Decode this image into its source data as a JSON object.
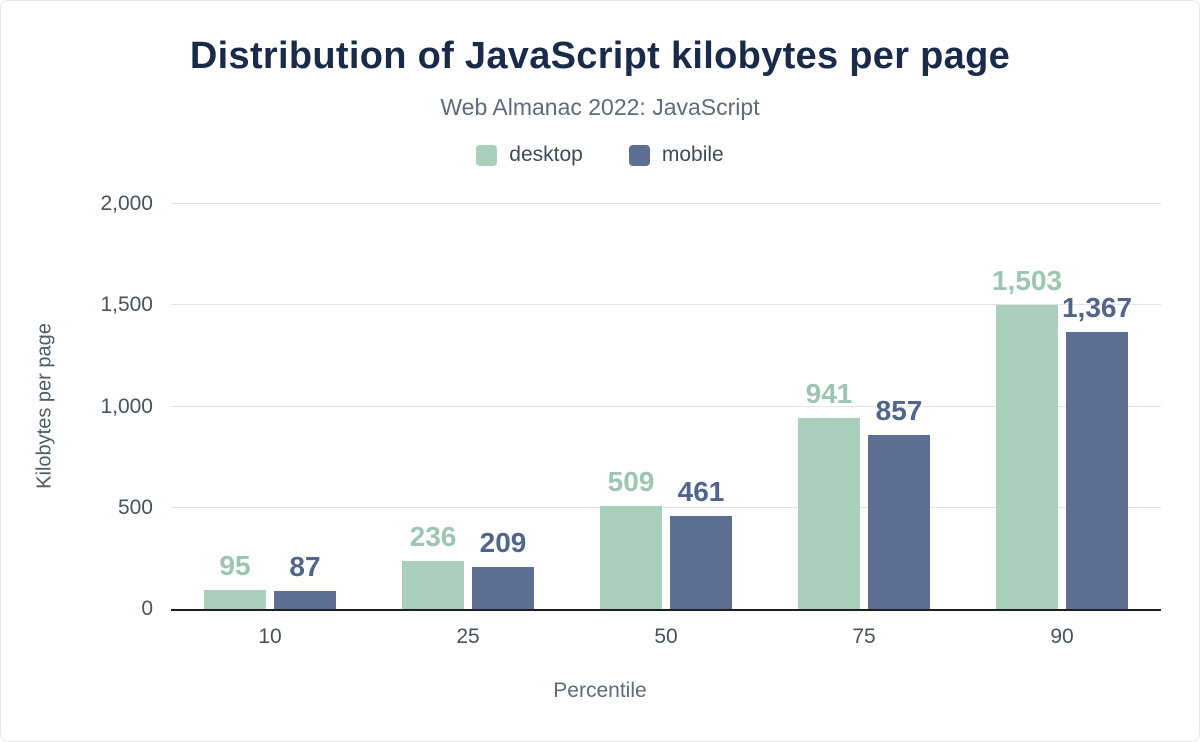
{
  "header": {
    "title": "Distribution of JavaScript kilobytes per page",
    "subtitle": "Web Almanac 2022: JavaScript"
  },
  "legend": [
    {
      "label": "desktop",
      "color": "#a9cfbd"
    },
    {
      "label": "mobile",
      "color": "#5c6e91"
    }
  ],
  "chart_data": {
    "type": "bar",
    "title": "Distribution of JavaScript kilobytes per page",
    "subtitle": "Web Almanac 2022: JavaScript",
    "categories": [
      "10",
      "25",
      "50",
      "75",
      "90"
    ],
    "series": [
      {
        "name": "desktop",
        "color": "#a9cfbd",
        "label_color": "#9cc6b1",
        "values": [
          95,
          236,
          509,
          941,
          1503
        ],
        "labels": [
          "95",
          "236",
          "509",
          "941",
          "1,503"
        ]
      },
      {
        "name": "mobile",
        "color": "#5c6e91",
        "label_color": "#51658c",
        "values": [
          87,
          209,
          461,
          857,
          1367
        ],
        "labels": [
          "87",
          "209",
          "461",
          "857",
          "1,367"
        ]
      }
    ],
    "xlabel": "Percentile",
    "ylabel": "Kilobytes per page",
    "ylim": [
      0,
      2000
    ],
    "yticks": [
      0,
      500,
      1000,
      1500,
      2000
    ],
    "ytick_labels": [
      "0",
      "500",
      "1,000",
      "1,500",
      "2,000"
    ],
    "grid": true,
    "legend_position": "top",
    "title_color": "#1a2b49"
  }
}
